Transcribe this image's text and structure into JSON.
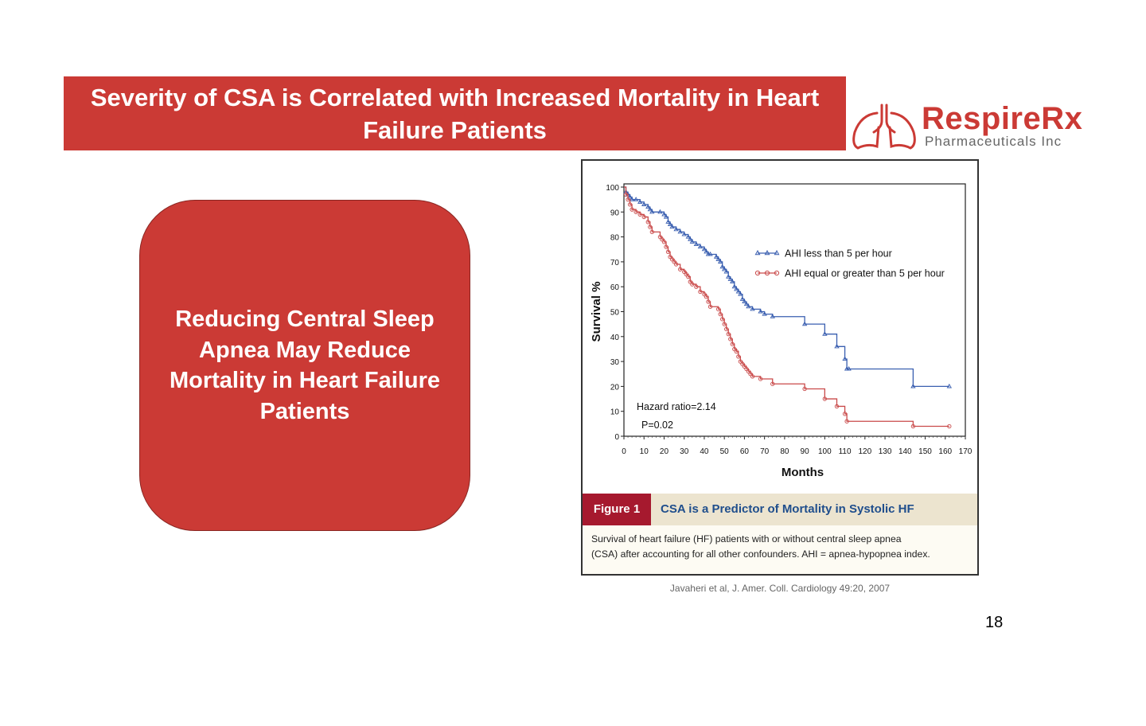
{
  "slide": {
    "title": "Severity of CSA is Correlated with Increased Mortality in Heart Failure Patients",
    "callout": "Reducing Central Sleep Apnea May Reduce Mortality in Heart Failure Patients",
    "page_number": "18",
    "citation": "Javaheri et al, J. Amer. Coll. Cardiology 49:20, 2007"
  },
  "logo": {
    "brand": "RespireRx",
    "subtitle": "Pharmaceuticals Inc",
    "icon": "lungs-icon"
  },
  "figure": {
    "tag": "Figure 1",
    "title": "CSA is a Predictor of Mortality in Systolic HF",
    "caption_line1": "Survival of heart failure (HF) patients with or without central sleep apnea",
    "caption_line2": "(CSA) after accounting for all other confounders. AHI = apnea-hypopnea index."
  },
  "colors": {
    "accent_red": "#cb3a35",
    "figure_tag": "#a6192e",
    "figure_title": "#1f4e8c",
    "series_blue": "#3a5fb0",
    "series_red": "#c94a4a"
  },
  "chart_data": {
    "type": "line",
    "step": true,
    "xlabel": "Months",
    "ylabel": "Survival %",
    "xlim": [
      0,
      170
    ],
    "ylim": [
      0,
      100
    ],
    "xticks": [
      "0",
      "10",
      "20",
      "30",
      "40",
      "50",
      "60",
      "70",
      "80",
      "90",
      "100",
      "110",
      "120",
      "130",
      "140",
      "150",
      "160",
      "170"
    ],
    "yticks": [
      "0",
      "10",
      "20",
      "30",
      "40",
      "50",
      "60",
      "70",
      "80",
      "90",
      "100"
    ],
    "legend_position": "top-right",
    "annotations": [
      "Hazard ratio=2.14",
      "P=0.02"
    ],
    "series": [
      {
        "name": "AHI  less than 5 per hour",
        "marker": "triangle",
        "color": "#3a5fb0",
        "x": [
          0,
          1,
          2,
          3,
          4,
          6,
          8,
          10,
          12,
          13,
          14,
          18,
          20,
          21,
          22,
          23,
          24,
          26,
          28,
          30,
          32,
          33,
          34,
          36,
          38,
          40,
          41,
          42,
          43,
          46,
          47,
          48,
          49,
          50,
          51,
          52,
          53,
          54,
          55,
          56,
          57,
          58,
          59,
          60,
          61,
          62,
          64,
          68,
          70,
          74,
          90,
          100,
          106,
          110,
          111,
          112,
          144,
          162
        ],
        "y": [
          100,
          98,
          97,
          96,
          95,
          95,
          94,
          93,
          92,
          91,
          90,
          90,
          89,
          88,
          86,
          85,
          84,
          83,
          82,
          81,
          80,
          79,
          78,
          77,
          76,
          75,
          74,
          73,
          73,
          72,
          71,
          70,
          68,
          67,
          66,
          64,
          63,
          62,
          60,
          59,
          58,
          57,
          55,
          54,
          53,
          52,
          51,
          50,
          49,
          48,
          45,
          41,
          36,
          31,
          27,
          27,
          20,
          20
        ]
      },
      {
        "name": "AHI equal or greater than 5 per hour",
        "marker": "circle",
        "color": "#c94a4a",
        "x": [
          0,
          1,
          2,
          3,
          4,
          6,
          8,
          10,
          12,
          13,
          14,
          18,
          19,
          20,
          21,
          22,
          23,
          24,
          25,
          26,
          28,
          30,
          31,
          32,
          33,
          34,
          36,
          38,
          40,
          41,
          42,
          43,
          47,
          48,
          49,
          50,
          51,
          52,
          53,
          54,
          55,
          56,
          57,
          58,
          59,
          60,
          61,
          62,
          63,
          64,
          68,
          74,
          90,
          100,
          106,
          110,
          111,
          144,
          162
        ],
        "y": [
          100,
          97,
          95,
          93,
          91,
          90,
          89,
          88,
          86,
          84,
          82,
          80,
          79,
          78,
          76,
          74,
          72,
          71,
          70,
          69,
          67,
          66,
          65,
          64,
          62,
          61,
          60,
          58,
          57,
          56,
          54,
          52,
          51,
          49,
          47,
          45,
          43,
          41,
          39,
          37,
          35,
          34,
          32,
          30,
          29,
          28,
          27,
          26,
          25,
          24,
          23,
          21,
          19,
          15,
          12,
          9,
          6,
          4,
          4
        ]
      }
    ]
  }
}
